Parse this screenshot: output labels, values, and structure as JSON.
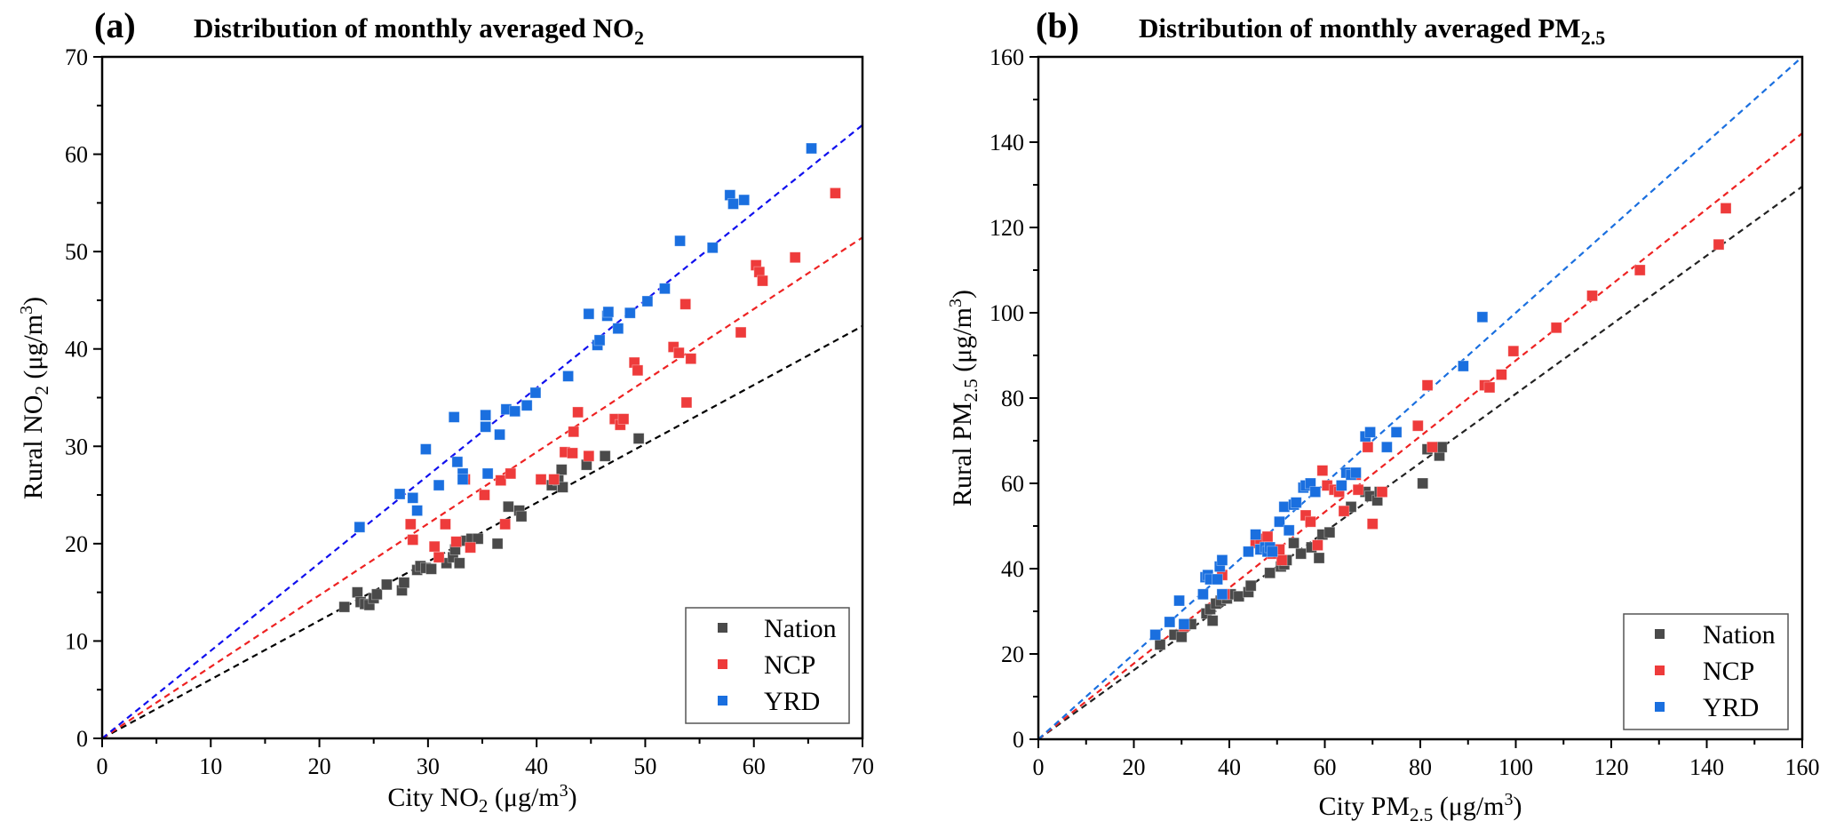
{
  "chart_data": [
    {
      "type": "scatter",
      "panel_label": "(a)",
      "title": "Distribution of monthly averaged NO",
      "title_sub": "2",
      "xlabel_pre": "City NO",
      "xlabel_sub": "2",
      "xlabel_post": " (μg/m",
      "xlabel_sup": "3",
      "xlabel_end": ")",
      "ylabel_pre": "Rural NO",
      "ylabel_sub": "2",
      "ylabel_post": " (μg/m",
      "ylabel_sup": "3",
      "ylabel_end": ")",
      "xlim": [
        0,
        70
      ],
      "ylim": [
        0,
        70
      ],
      "xticks": [
        0,
        10,
        20,
        30,
        40,
        50,
        60,
        70
      ],
      "yticks": [
        0,
        10,
        20,
        30,
        40,
        50,
        60,
        70
      ],
      "grid": false,
      "legend_position": "bottom-right",
      "series": [
        {
          "name": "Nation",
          "color": "#4a4a4a",
          "fit_color": "#000000",
          "fit_slope": 0.605,
          "points": [
            [
              22.3,
              13.5
            ],
            [
              23.5,
              15.0
            ],
            [
              23.8,
              14.0
            ],
            [
              24.2,
              13.8
            ],
            [
              24.6,
              13.7
            ],
            [
              25.0,
              14.4
            ],
            [
              25.3,
              14.8
            ],
            [
              26.2,
              15.8
            ],
            [
              27.6,
              15.2
            ],
            [
              27.8,
              16.0
            ],
            [
              29.0,
              17.3
            ],
            [
              29.3,
              17.7
            ],
            [
              29.8,
              17.5
            ],
            [
              30.3,
              17.4
            ],
            [
              31.7,
              18.0
            ],
            [
              32.3,
              18.6
            ],
            [
              32.5,
              19.4
            ],
            [
              32.9,
              18.0
            ],
            [
              33.5,
              20.3
            ],
            [
              34.0,
              20.5
            ],
            [
              34.6,
              20.5
            ],
            [
              36.4,
              20.0
            ],
            [
              37.4,
              23.8
            ],
            [
              38.4,
              23.4
            ],
            [
              38.6,
              22.8
            ],
            [
              41.4,
              26.0
            ],
            [
              42.0,
              26.5
            ],
            [
              42.3,
              27.6
            ],
            [
              42.4,
              25.8
            ],
            [
              44.6,
              28.1
            ],
            [
              46.3,
              29.0
            ],
            [
              47.8,
              32.8
            ],
            [
              49.4,
              30.8
            ]
          ]
        },
        {
          "name": "NCP",
          "color": "#ee3b3b",
          "fit_color": "#ee2222",
          "fit_slope": 0.735,
          "points": [
            [
              28.4,
              22.0
            ],
            [
              28.6,
              20.4
            ],
            [
              30.6,
              19.7
            ],
            [
              31.0,
              18.6
            ],
            [
              31.6,
              22.0
            ],
            [
              32.6,
              20.2
            ],
            [
              33.4,
              26.6
            ],
            [
              33.9,
              19.6
            ],
            [
              35.2,
              25.0
            ],
            [
              36.7,
              26.5
            ],
            [
              37.1,
              22.0
            ],
            [
              37.6,
              27.2
            ],
            [
              40.4,
              26.6
            ],
            [
              41.6,
              26.6
            ],
            [
              42.6,
              29.4
            ],
            [
              43.3,
              29.3
            ],
            [
              43.4,
              31.5
            ],
            [
              43.8,
              33.5
            ],
            [
              44.8,
              29.0
            ],
            [
              47.2,
              32.8
            ],
            [
              47.7,
              32.2
            ],
            [
              48.0,
              32.8
            ],
            [
              49.0,
              38.6
            ],
            [
              49.3,
              37.8
            ],
            [
              52.6,
              40.2
            ],
            [
              53.1,
              39.6
            ],
            [
              53.7,
              44.6
            ],
            [
              53.8,
              34.5
            ],
            [
              54.2,
              39.0
            ],
            [
              58.8,
              41.7
            ],
            [
              60.2,
              48.6
            ],
            [
              60.5,
              47.9
            ],
            [
              60.8,
              47.0
            ],
            [
              63.8,
              49.4
            ],
            [
              67.5,
              56.0
            ]
          ]
        },
        {
          "name": "YRD",
          "color": "#1a6fdf",
          "fit_color": "#1010ee",
          "fit_slope": 0.9,
          "points": [
            [
              23.7,
              21.7
            ],
            [
              27.4,
              25.1
            ],
            [
              28.6,
              24.7
            ],
            [
              29.0,
              23.4
            ],
            [
              29.8,
              29.7
            ],
            [
              31.0,
              26.0
            ],
            [
              32.4,
              33.0
            ],
            [
              32.7,
              28.4
            ],
            [
              33.2,
              27.2
            ],
            [
              33.2,
              26.6
            ],
            [
              35.3,
              33.2
            ],
            [
              35.3,
              32.0
            ],
            [
              35.5,
              27.2
            ],
            [
              36.6,
              31.2
            ],
            [
              37.2,
              33.8
            ],
            [
              38.0,
              33.6
            ],
            [
              39.1,
              34.2
            ],
            [
              39.9,
              35.5
            ],
            [
              42.9,
              37.2
            ],
            [
              44.8,
              43.6
            ],
            [
              45.6,
              40.4
            ],
            [
              45.8,
              40.9
            ],
            [
              46.5,
              43.4
            ],
            [
              46.6,
              43.8
            ],
            [
              47.5,
              42.1
            ],
            [
              48.6,
              43.7
            ],
            [
              50.2,
              44.9
            ],
            [
              51.8,
              46.2
            ],
            [
              53.2,
              51.1
            ],
            [
              56.2,
              50.4
            ],
            [
              57.8,
              55.8
            ],
            [
              58.1,
              54.9
            ],
            [
              59.1,
              55.3
            ],
            [
              65.3,
              60.6
            ]
          ]
        }
      ]
    },
    {
      "type": "scatter",
      "panel_label": "(b)",
      "title": "Distribution of monthly averaged PM",
      "title_sub": "2.5",
      "xlabel_pre": "City PM",
      "xlabel_sub": "2.5",
      "xlabel_post": " (μg/m",
      "xlabel_sup": "3",
      "xlabel_end": ")",
      "ylabel_pre": "Rural PM",
      "ylabel_sub": "2.5",
      "ylabel_post": " (μg/m",
      "ylabel_sup": "3",
      "ylabel_end": ")",
      "xlim": [
        0,
        160
      ],
      "ylim": [
        0,
        160
      ],
      "xticks": [
        0,
        20,
        40,
        60,
        80,
        100,
        120,
        140,
        160
      ],
      "yticks": [
        0,
        20,
        40,
        60,
        80,
        100,
        120,
        140,
        160
      ],
      "grid": false,
      "legend_position": "bottom-right",
      "series": [
        {
          "name": "Nation",
          "color": "#4a4a4a",
          "fit_color": "#222222",
          "fit_slope": 0.81,
          "points": [
            [
              25.5,
              22.2
            ],
            [
              28.5,
              24.5
            ],
            [
              30.0,
              24.0
            ],
            [
              30.8,
              26.8
            ],
            [
              32.0,
              27.0
            ],
            [
              35.2,
              29.5
            ],
            [
              36.0,
              30.5
            ],
            [
              36.5,
              27.8
            ],
            [
              37.2,
              31.8
            ],
            [
              38.2,
              32.5
            ],
            [
              39.5,
              33.0
            ],
            [
              40.3,
              34.0
            ],
            [
              42.0,
              33.5
            ],
            [
              44.0,
              34.5
            ],
            [
              44.5,
              36.0
            ],
            [
              48.5,
              39.0
            ],
            [
              50.8,
              40.5
            ],
            [
              51.5,
              41.0
            ],
            [
              52.0,
              42.0
            ],
            [
              53.5,
              46.0
            ],
            [
              55.0,
              43.5
            ],
            [
              57.2,
              45.0
            ],
            [
              58.8,
              42.5
            ],
            [
              59.5,
              48.0
            ],
            [
              61.0,
              48.5
            ],
            [
              64.0,
              53.5
            ],
            [
              65.5,
              54.5
            ],
            [
              68.5,
              58.0
            ],
            [
              69.5,
              57.0
            ],
            [
              71.0,
              56.0
            ],
            [
              71.5,
              58.0
            ],
            [
              80.5,
              60.0
            ],
            [
              81.5,
              68.0
            ],
            [
              84.0,
              66.5
            ],
            [
              84.5,
              68.5
            ]
          ]
        },
        {
          "name": "NCP",
          "color": "#ee3b3b",
          "fit_color": "#ee2222",
          "fit_slope": 0.888,
          "points": [
            [
              30.5,
              26.5
            ],
            [
              38.5,
              38.5
            ],
            [
              39.0,
              34.0
            ],
            [
              45.5,
              46.0
            ],
            [
              46.5,
              47.0
            ],
            [
              48.0,
              47.5
            ],
            [
              49.0,
              43.5
            ],
            [
              50.5,
              44.5
            ],
            [
              51.0,
              42.0
            ],
            [
              56.0,
              52.5
            ],
            [
              57.0,
              51.0
            ],
            [
              58.5,
              45.5
            ],
            [
              59.5,
              63.0
            ],
            [
              60.5,
              59.5
            ],
            [
              62.0,
              58.5
            ],
            [
              63.0,
              58.0
            ],
            [
              64.0,
              53.5
            ],
            [
              66.5,
              62.0
            ],
            [
              67.0,
              58.5
            ],
            [
              69.0,
              68.5
            ],
            [
              70.0,
              50.5
            ],
            [
              72.0,
              58.0
            ],
            [
              79.5,
              73.5
            ],
            [
              81.5,
              83.0
            ],
            [
              82.5,
              68.5
            ],
            [
              93.5,
              83.0
            ],
            [
              94.5,
              82.5
            ],
            [
              97.0,
              85.5
            ],
            [
              99.5,
              91.0
            ],
            [
              108.5,
              96.5
            ],
            [
              116.0,
              104.0
            ],
            [
              126.0,
              110.0
            ],
            [
              142.5,
              116.0
            ],
            [
              144.0,
              124.5
            ]
          ]
        },
        {
          "name": "YRD",
          "color": "#1a6fdf",
          "fit_color": "#1a6fdf",
          "fit_slope": 1.0,
          "points": [
            [
              24.5,
              24.5
            ],
            [
              27.5,
              27.5
            ],
            [
              29.5,
              32.5
            ],
            [
              30.5,
              27.0
            ],
            [
              34.5,
              34.0
            ],
            [
              35.0,
              38.0
            ],
            [
              35.5,
              38.5
            ],
            [
              36.0,
              37.5
            ],
            [
              37.5,
              37.5
            ],
            [
              38.0,
              40.5
            ],
            [
              38.5,
              42.0
            ],
            [
              38.5,
              34.0
            ],
            [
              44.0,
              44.0
            ],
            [
              45.5,
              48.0
            ],
            [
              46.5,
              44.5
            ],
            [
              47.5,
              45.0
            ],
            [
              48.0,
              44.0
            ],
            [
              48.5,
              45.0
            ],
            [
              49.0,
              44.0
            ],
            [
              50.5,
              51.0
            ],
            [
              51.5,
              54.5
            ],
            [
              52.5,
              49.0
            ],
            [
              53.5,
              55.0
            ],
            [
              54.0,
              55.5
            ],
            [
              55.5,
              59.0
            ],
            [
              56.0,
              59.5
            ],
            [
              57.0,
              60.0
            ],
            [
              58.0,
              58.0
            ],
            [
              63.5,
              59.5
            ],
            [
              64.5,
              62.5
            ],
            [
              65.5,
              62.0
            ],
            [
              66.5,
              62.5
            ],
            [
              68.5,
              71.0
            ],
            [
              69.5,
              72.0
            ],
            [
              73.0,
              68.5
            ],
            [
              75.0,
              72.0
            ],
            [
              89.0,
              87.5
            ],
            [
              93.0,
              99.0
            ]
          ]
        }
      ]
    }
  ]
}
